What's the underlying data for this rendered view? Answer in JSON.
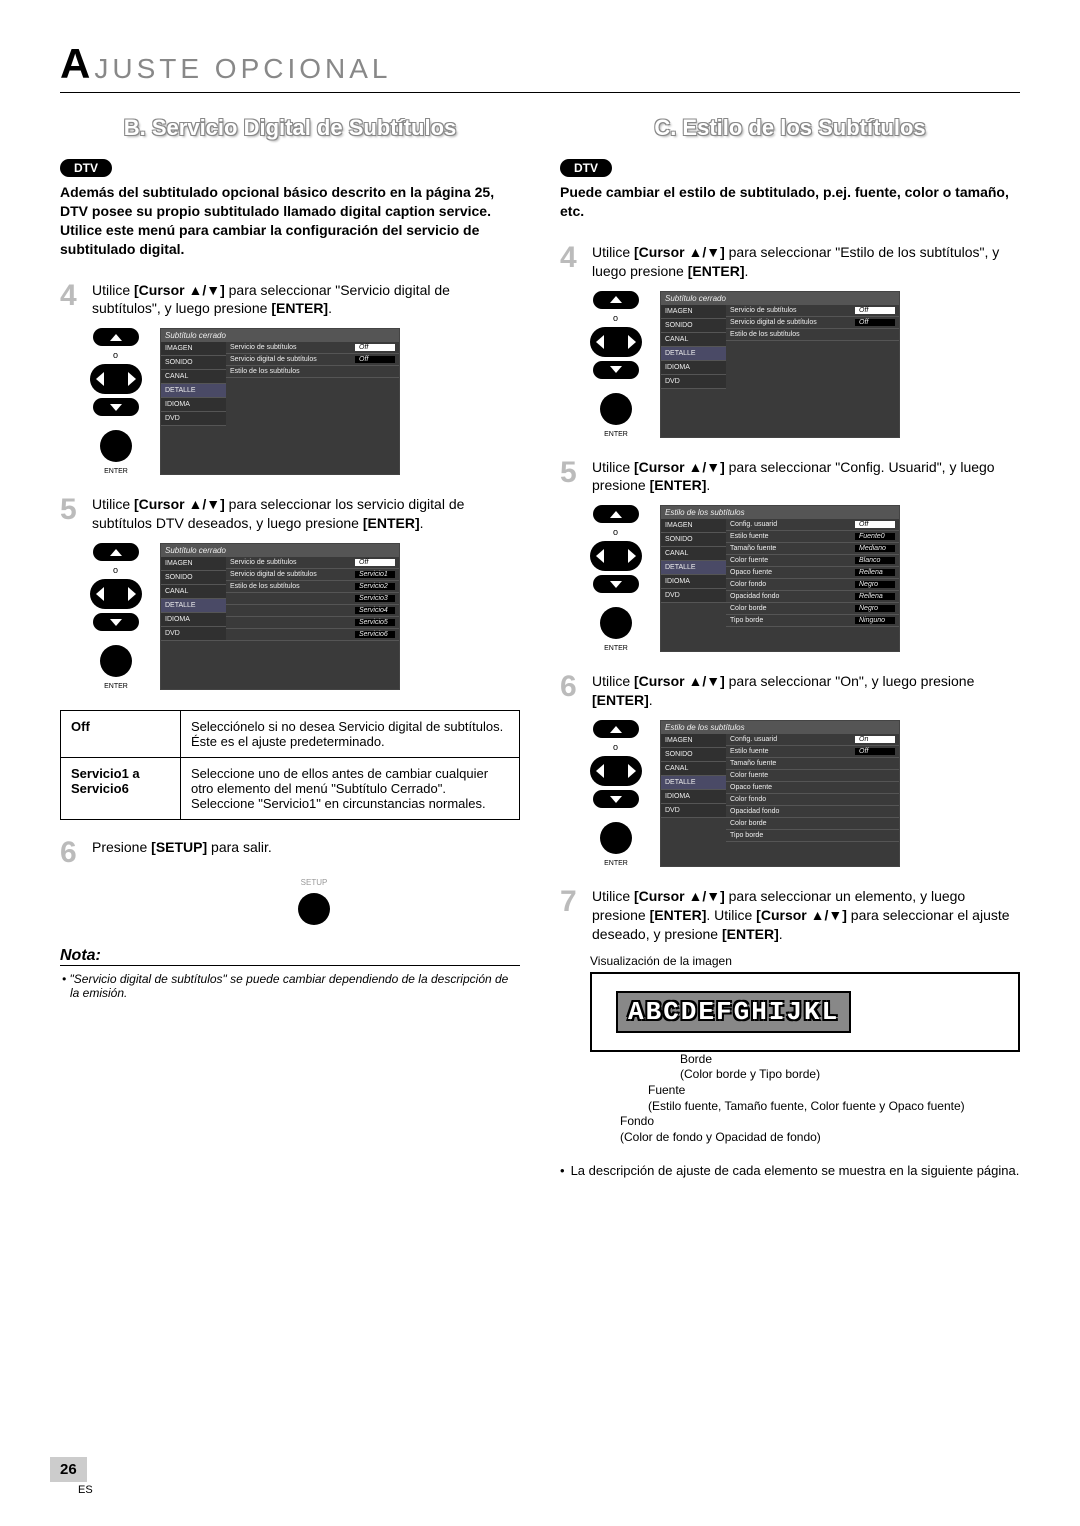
{
  "page": {
    "header_prefix": "A",
    "header_rest": "JUSTE  OPCIONAL",
    "number": "26",
    "foot": "ES"
  },
  "left": {
    "title": "B. Servicio Digital de Subtítulos",
    "badge": "DTV",
    "intro": "Además del subtitulado opcional básico descrito en la página 25, DTV posee su propio subtitulado llamado digital caption service. Utilice este menú para cambiar la configuración del servicio de subtitulado digital.",
    "step4_a": "Utilice ",
    "step4_b": "[Cursor ▲/▼]",
    "step4_c": " para seleccionar \"Servicio digital de subtítulos\", y luego presione ",
    "step4_d": "[ENTER]",
    "step4_e": ".",
    "step5_a": "Utilice ",
    "step5_b": "[Cursor ▲/▼]",
    "step5_c": " para seleccionar los servicio digital de subtítulos DTV deseados, y luego presione ",
    "step5_d": "[ENTER]",
    "step5_e": ".",
    "step6_a": "Presione ",
    "step6_b": "[SETUP]",
    "step6_c": " para salir.",
    "table": {
      "r1l": "Off",
      "r1r": "Selecciónelo si no desea Servicio digital de subtítulos. Éste es el ajuste predeterminado.",
      "r2l": "Servicio1 a Servicio6",
      "r2r": "Seleccione uno de ellos antes de cambiar cualquier otro elemento del menú \"Subtítulo Cerrado\". Seleccione \"Servicio1\" en circunstancias normales."
    },
    "nota_head": "Nota:",
    "nota_body": "\"Servicio digital de subtítulos\" se puede cambiar dependiendo de la descripción de la emisión."
  },
  "right": {
    "title": "C. Estilo de los Subtítulos",
    "badge": "DTV",
    "intro": "Puede cambiar el estilo de subtitulado, p.ej. fuente, color o tamaño, etc.",
    "step4_a": "Utilice ",
    "step4_b": "[Cursor ▲/▼]",
    "step4_c": " para seleccionar \"Estilo de los subtítulos\", y luego presione ",
    "step4_d": "[ENTER]",
    "step4_e": ".",
    "step5_a": "Utilice ",
    "step5_b": "[Cursor ▲/▼]",
    "step5_c": " para seleccionar \"Config. Usuarid\", y luego presione ",
    "step5_d": "[ENTER]",
    "step5_e": ".",
    "step6_a": "Utilice ",
    "step6_b": "[Cursor ▲/▼]",
    "step6_c": " para seleccionar \"On\", y luego presione ",
    "step6_d": "[ENTER]",
    "step6_e": ".",
    "step7_a": "Utilice ",
    "step7_b": "[Cursor ▲/▼]",
    "step7_c": " para seleccionar un elemento, y luego presione ",
    "step7_d": "[ENTER]",
    "step7_e": ". Utilice ",
    "step7_f": "[Cursor ▲/▼]",
    "step7_g": " para seleccionar el ajuste deseado, y presione ",
    "step7_h": "[ENTER]",
    "step7_i": ".",
    "viz_label": "Visualización de la imagen",
    "viz_text": "ABCDEFGHIJKL",
    "lead_borde": "Borde",
    "lead_borde_sub": "(Color borde y Tipo borde)",
    "lead_fuente": "Fuente",
    "lead_fuente_sub": "(Estilo fuente, Tamaño fuente, Color fuente y Opaco fuente)",
    "lead_fondo": "Fondo",
    "lead_fondo_sub": "(Color de fondo y Opacidad de fondo)",
    "bullet": "La descripción de ajuste de cada elemento se muestra en la siguiente página."
  },
  "osd": {
    "title_cc": "Subtítulo cerrado",
    "title_style": "Estilo de los subtítulos",
    "side": [
      "IMAGEN",
      "SONIDO",
      "CANAL",
      "DETALLE",
      "IDIOMA",
      "DVD"
    ],
    "rows_a": [
      {
        "l": "Servicio de subtítulos",
        "v": "Off"
      },
      {
        "l": "Servicio digital de subtítulos",
        "v": "Off"
      },
      {
        "l": "Estilo de los subtítulos",
        "v": ""
      }
    ],
    "rows_b": [
      {
        "l": "Servicio de subtítulos",
        "v": "Off"
      },
      {
        "l": "Servicio digital de subtítulos",
        "v": "Servicio1"
      },
      {
        "l": "Estilo de los subtítulos",
        "v": "Servicio2"
      },
      {
        "l": "",
        "v": "Servicio3"
      },
      {
        "l": "",
        "v": "Servicio4"
      },
      {
        "l": "",
        "v": "Servicio5"
      },
      {
        "l": "",
        "v": "Servicio6"
      }
    ],
    "rows_c": [
      {
        "l": "Config. usuarid",
        "v": "Off"
      },
      {
        "l": "Estilo fuente",
        "v": "Fuente0"
      },
      {
        "l": "Tamaño fuente",
        "v": "Mediano"
      },
      {
        "l": "Color fuente",
        "v": "Blanco"
      },
      {
        "l": "Opaco fuente",
        "v": "Rellena"
      },
      {
        "l": "Color fondo",
        "v": "Negro"
      },
      {
        "l": "Opacidad fondo",
        "v": "Rellena"
      },
      {
        "l": "Color borde",
        "v": "Negro"
      },
      {
        "l": "Tipo borde",
        "v": "Ninguno"
      }
    ],
    "rows_d": [
      {
        "l": "Config. usuarid",
        "v": "On"
      },
      {
        "l": "Estilo fuente",
        "v": "Off"
      },
      {
        "l": "Tamaño fuente",
        "v": ""
      },
      {
        "l": "Color fuente",
        "v": ""
      },
      {
        "l": "Opaco fuente",
        "v": ""
      },
      {
        "l": "Color fondo",
        "v": ""
      },
      {
        "l": "Opacidad fondo",
        "v": ""
      },
      {
        "l": "Color borde",
        "v": ""
      },
      {
        "l": "Tipo borde",
        "v": ""
      }
    ]
  },
  "remote": {
    "of": "o",
    "enter": "ENTER",
    "setup": "SETUP"
  }
}
